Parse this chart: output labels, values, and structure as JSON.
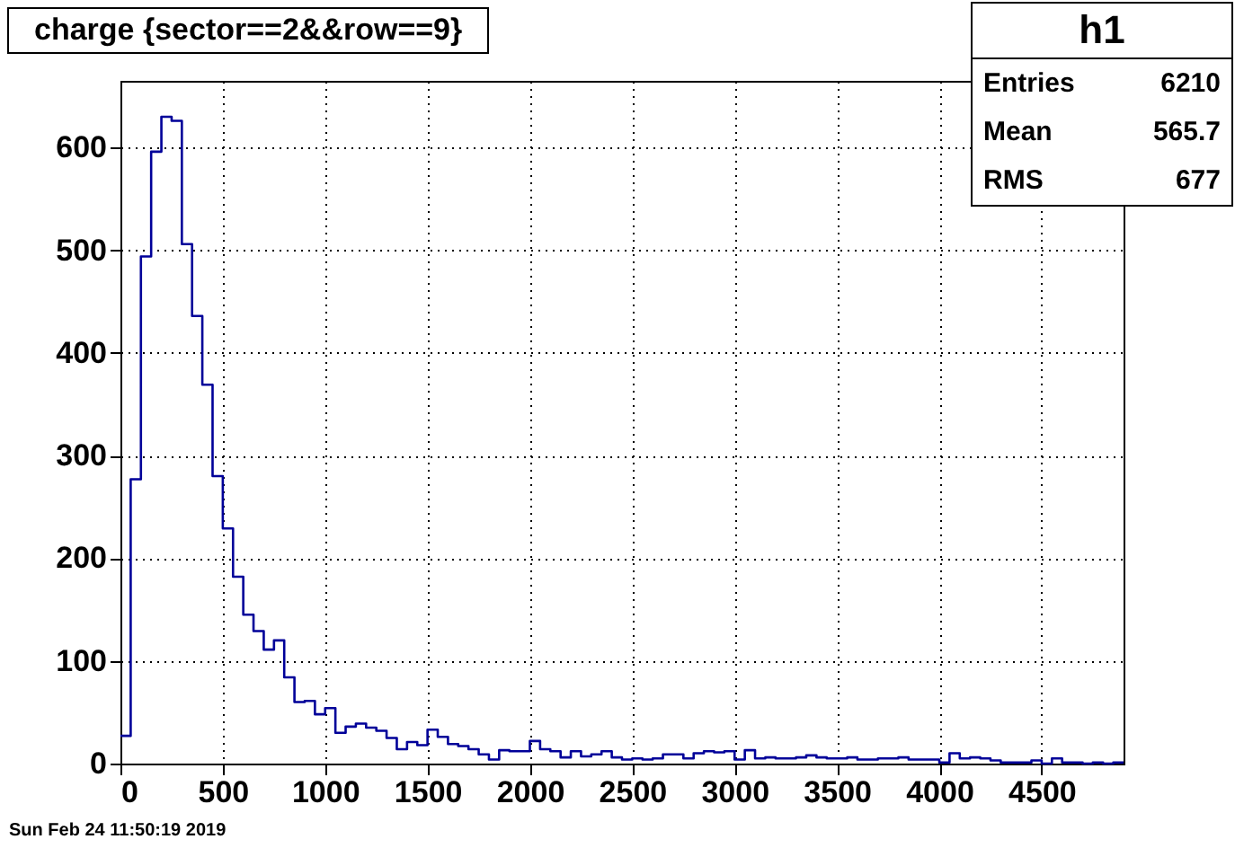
{
  "chart_data": {
    "type": "histogram",
    "title": "charge {sector==2&&row==9}",
    "bins": [
      0,
      50,
      100,
      150,
      200,
      250,
      300,
      350,
      400,
      450,
      500,
      550,
      600,
      650,
      700,
      750,
      800,
      850,
      900,
      950,
      1000,
      1050,
      1100,
      1150,
      1200,
      1250,
      1300,
      1350,
      1400,
      1450,
      1500,
      1550,
      1600,
      1650,
      1700,
      1750,
      1800,
      1850,
      1900,
      1950,
      2000,
      2050,
      2100,
      2150,
      2200,
      2250,
      2300,
      2350,
      2400,
      2450,
      2500,
      2550,
      2600,
      2650,
      2700,
      2750,
      2800,
      2850,
      2900,
      2950,
      3000,
      3050,
      3100,
      3150,
      3200,
      3250,
      3300,
      3350,
      3400,
      3450,
      3500,
      3550,
      3600,
      3650,
      3700,
      3750,
      3800,
      3850,
      3900,
      3950,
      4000,
      4050,
      4100,
      4150,
      4200,
      4250,
      4300,
      4350,
      4400,
      4450,
      4500,
      4550,
      4600,
      4650,
      4700,
      4750,
      4800,
      4850,
      4900
    ],
    "values": [
      27,
      277,
      494,
      596,
      630,
      626,
      506,
      436,
      369,
      280,
      229,
      182,
      145,
      129,
      111,
      120,
      84,
      60,
      61,
      48,
      54,
      30,
      36,
      39,
      35,
      32,
      25,
      14,
      21,
      18,
      33,
      26,
      19,
      17,
      14,
      9,
      4,
      13,
      12,
      12,
      22,
      14,
      12,
      6,
      12,
      7,
      9,
      12,
      6,
      4,
      5,
      4,
      5,
      9,
      9,
      5,
      10,
      12,
      11,
      12,
      4,
      13,
      5,
      6,
      5,
      5,
      6,
      8,
      6,
      5,
      5,
      6,
      4,
      4,
      5,
      5,
      6,
      4,
      4,
      4,
      1,
      10,
      5,
      6,
      5,
      3,
      1,
      1,
      1,
      3,
      0,
      5,
      1,
      1,
      0,
      1,
      0,
      1
    ],
    "color": "#000099",
    "xlim": [
      0,
      4900
    ],
    "xticks": [
      0,
      500,
      1000,
      1500,
      2000,
      2500,
      3000,
      3500,
      4000,
      4500
    ],
    "ylim": [
      0,
      665
    ],
    "yticks": [
      0,
      100,
      200,
      300,
      400,
      500,
      600
    ],
    "grid": true,
    "annotations": [
      "h1",
      "Entries",
      "6210",
      "Mean",
      "565.7",
      "RMS",
      "677",
      "Sun Feb 24 11:50:19 2019"
    ]
  }
}
